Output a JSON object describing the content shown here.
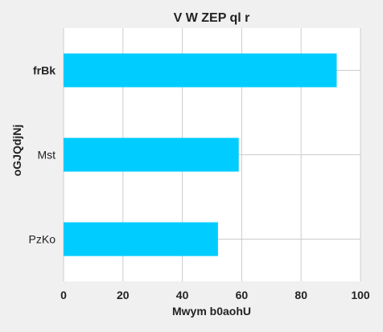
{
  "chart_data": {
    "type": "bar",
    "orientation": "horizontal",
    "title": "V W ZEP ql r",
    "xlabel": "Mwym b0aohU",
    "ylabel": "oGJQdjNj",
    "categories": [
      "frBk",
      "Mst",
      "PzKo"
    ],
    "values": [
      92,
      59,
      52
    ],
    "xlim": [
      0,
      100
    ],
    "x_ticks": [
      "0",
      "20",
      "40",
      "60",
      "80",
      "100"
    ],
    "bold_categories": [
      "frBk"
    ],
    "grid": true,
    "bar_color": "#00ccff",
    "plot_background": "#ffffff",
    "page_background": "#f0f0f0",
    "grid_color": "#cccccc"
  }
}
